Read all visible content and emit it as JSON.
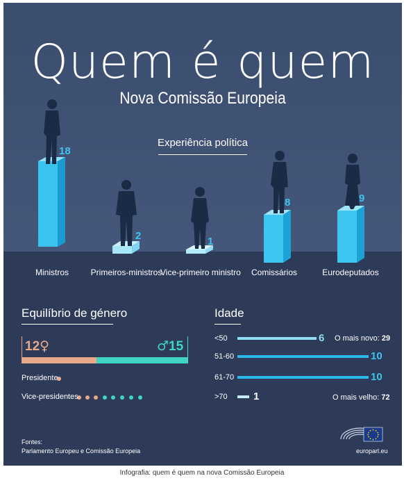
{
  "header": {
    "title": "Quem é quem",
    "subtitle": "Nova Comissão Europeia"
  },
  "experience": {
    "title": "Experiência política",
    "categories": [
      {
        "label": "Ministros",
        "value": "18"
      },
      {
        "label": "Primeiros-ministros",
        "value": "2"
      },
      {
        "label": "Vice-primeiro ministro",
        "value": "1"
      },
      {
        "label": "Comissários",
        "value": "8"
      },
      {
        "label": "Eurodeputados",
        "value": "9"
      }
    ]
  },
  "gender": {
    "title": "Equilíbrio de género",
    "female_count": "12",
    "male_count": "15",
    "female_symbol": "♀",
    "male_symbol": "♂",
    "female_color": "#e8a98a",
    "male_color": "#3fd6c4",
    "president_label": "Presidente",
    "president_female": 1,
    "vice_label": "Vice-presidentes",
    "vice_female": 3,
    "vice_male": 5
  },
  "age": {
    "title": "Idade",
    "groups": [
      {
        "label": "<50",
        "value": "6"
      },
      {
        "label": "51-60",
        "value": "10"
      },
      {
        "label": "61-70",
        "value": "10"
      },
      {
        "label": ">70",
        "value": "1"
      }
    ],
    "youngest_label": "O mais novo:",
    "youngest_value": "29",
    "oldest_label": "O mais velho:",
    "oldest_value": "72"
  },
  "footer": {
    "sources_label": "Fontes:",
    "sources": "Parlamento Europeu e Comissão Europeia",
    "site": "europarl.eu"
  },
  "caption": "Infografia: quem é quem na nova Comissão Europeia",
  "colors": {
    "bg_top": "#3e5170",
    "bg_bottom": "#2c3a58",
    "accent": "#3ec4ee",
    "silhouette": "#1b2a45"
  }
}
